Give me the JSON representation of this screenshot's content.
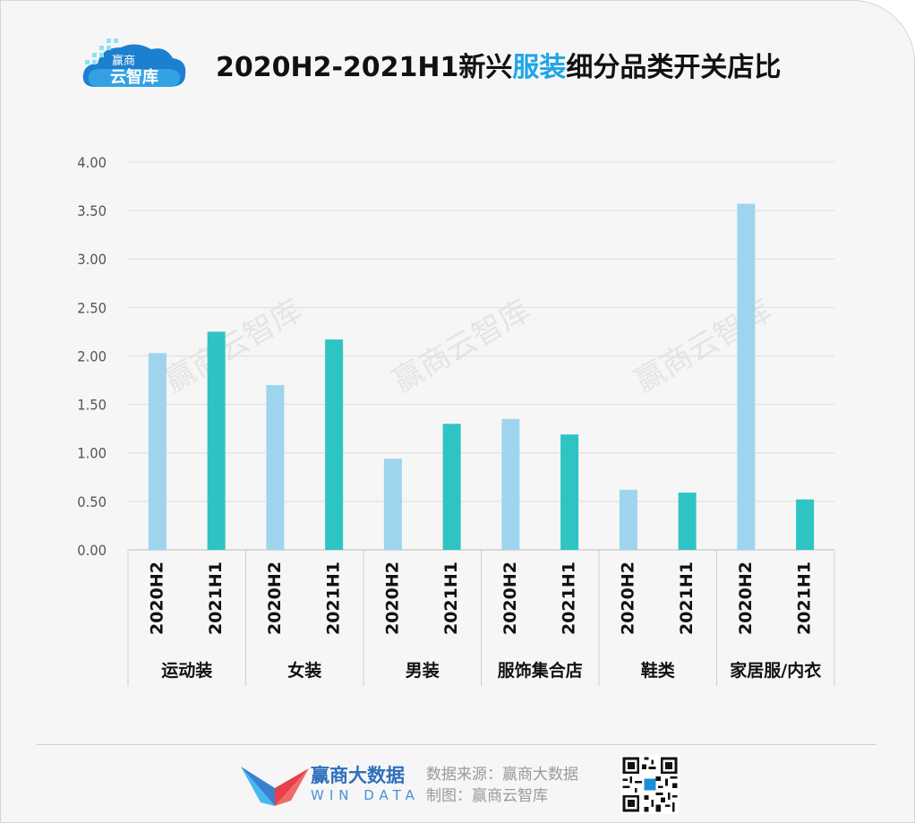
{
  "title": {
    "part1": "2020H2-2021H1新兴",
    "highlight": "服装",
    "part2": "细分品类开关店比"
  },
  "logo_text": {
    "line1": "赢商",
    "line2": "云智库"
  },
  "watermark": "赢商云智库",
  "footer": {
    "brand_cn": "赢商大数据",
    "brand_en": "WIN DATA",
    "source": "数据来源：赢商大数据",
    "made_by": "制图：赢商云智库"
  },
  "colors": {
    "h2": "#9fd4ee",
    "h1": "#2ec4c4",
    "highlight": "#1fa6e8"
  },
  "chart_data": {
    "type": "bar",
    "groups": [
      "运动装",
      "女装",
      "男装",
      "服饰集合店",
      "鞋类",
      "家居服/内衣"
    ],
    "periods": [
      "2020H2",
      "2021H1"
    ],
    "values": [
      [
        2.03,
        2.25
      ],
      [
        1.7,
        2.17
      ],
      [
        0.94,
        1.3
      ],
      [
        1.35,
        1.19
      ],
      [
        0.62,
        0.59
      ],
      [
        3.57,
        0.52
      ]
    ],
    "ylim": [
      0,
      4
    ],
    "yticks": [
      "0.00",
      "0.50",
      "1.00",
      "1.50",
      "2.00",
      "2.50",
      "3.00",
      "3.50",
      "4.00"
    ],
    "grid": true,
    "xlabel": "",
    "ylabel": ""
  }
}
